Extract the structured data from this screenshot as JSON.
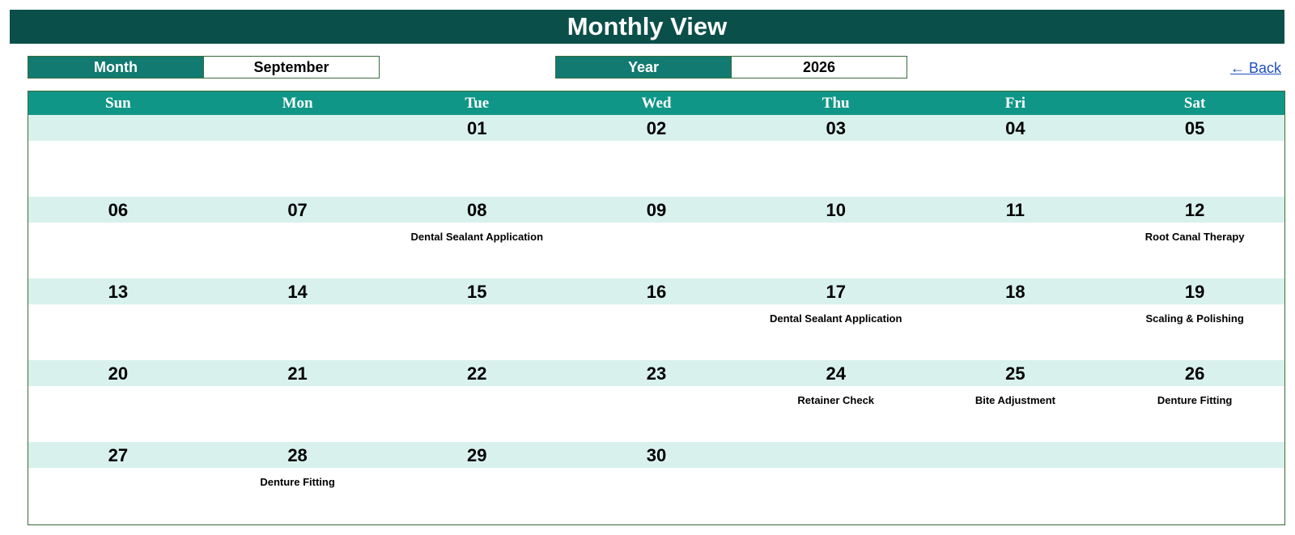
{
  "header": {
    "title": "Monthly View"
  },
  "controls": {
    "month_label": "Month",
    "month_value": "September",
    "year_label": "Year",
    "year_value": "2026",
    "back_label": "← Back"
  },
  "colors": {
    "title_bg": "#0b4f4a",
    "label_bg": "#127a70",
    "dow_bg": "#0f9687",
    "date_band_bg": "#d8f1ec",
    "border": "#3b6b3b",
    "link": "#1f4fbf"
  },
  "calendar": {
    "weekdays": [
      "Sun",
      "Mon",
      "Tue",
      "Wed",
      "Thu",
      "Fri",
      "Sat"
    ],
    "weeks": [
      [
        {
          "day": "",
          "events": []
        },
        {
          "day": "",
          "events": []
        },
        {
          "day": "01",
          "events": []
        },
        {
          "day": "02",
          "events": []
        },
        {
          "day": "03",
          "events": []
        },
        {
          "day": "04",
          "events": []
        },
        {
          "day": "05",
          "events": []
        }
      ],
      [
        {
          "day": "06",
          "events": []
        },
        {
          "day": "07",
          "events": []
        },
        {
          "day": "08",
          "events": [
            "Dental Sealant Application"
          ]
        },
        {
          "day": "09",
          "events": []
        },
        {
          "day": "10",
          "events": []
        },
        {
          "day": "11",
          "events": []
        },
        {
          "day": "12",
          "events": [
            "Root Canal Therapy"
          ]
        }
      ],
      [
        {
          "day": "13",
          "events": []
        },
        {
          "day": "14",
          "events": []
        },
        {
          "day": "15",
          "events": []
        },
        {
          "day": "16",
          "events": []
        },
        {
          "day": "17",
          "events": [
            "Dental Sealant Application"
          ]
        },
        {
          "day": "18",
          "events": []
        },
        {
          "day": "19",
          "events": [
            "Scaling & Polishing"
          ]
        }
      ],
      [
        {
          "day": "20",
          "events": []
        },
        {
          "day": "21",
          "events": []
        },
        {
          "day": "22",
          "events": []
        },
        {
          "day": "23",
          "events": []
        },
        {
          "day": "24",
          "events": [
            "Retainer Check"
          ]
        },
        {
          "day": "25",
          "events": [
            "Bite Adjustment"
          ]
        },
        {
          "day": "26",
          "events": [
            "Denture Fitting"
          ]
        }
      ],
      [
        {
          "day": "27",
          "events": []
        },
        {
          "day": "28",
          "events": [
            "Denture Fitting"
          ]
        },
        {
          "day": "29",
          "events": []
        },
        {
          "day": "30",
          "events": []
        },
        {
          "day": "",
          "events": []
        },
        {
          "day": "",
          "events": []
        },
        {
          "day": "",
          "events": []
        }
      ]
    ]
  }
}
